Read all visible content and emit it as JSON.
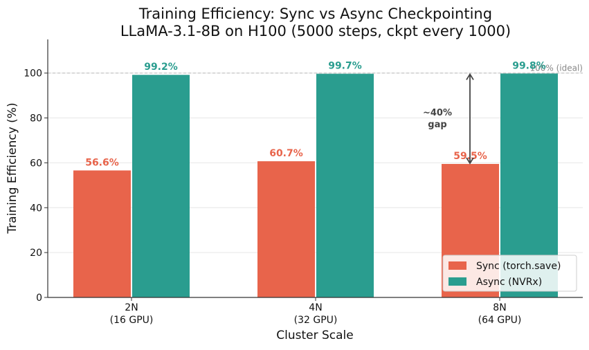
{
  "colors": {
    "sync": "#e8644b",
    "async": "#2a9d8f",
    "sync_label": "#e8644b",
    "async_label": "#2a9d8f"
  },
  "chart_data": {
    "type": "bar",
    "title": "Training Efficiency: Sync vs Async Checkpointing",
    "subtitle": "LLaMA-3.1-8B on H100 (5000 steps, ckpt every 1000)",
    "xlabel": "Cluster Scale",
    "ylabel": "Training Efficiency (%)",
    "ylim": [
      0,
      115
    ],
    "yticks": [
      0,
      20,
      40,
      60,
      80,
      100
    ],
    "categories": [
      {
        "line1": "2N",
        "line2": "(16 GPU)"
      },
      {
        "line1": "4N",
        "line2": "(32 GPU)"
      },
      {
        "line1": "8N",
        "line2": "(64 GPU)"
      }
    ],
    "series": [
      {
        "name": "Sync (torch.save)",
        "values": [
          56.6,
          60.7,
          59.5
        ],
        "labels": [
          "56.6%",
          "60.7%",
          "59.5%"
        ]
      },
      {
        "name": "Async (NVRx)",
        "values": [
          99.2,
          99.7,
          99.8
        ],
        "labels": [
          "99.2%",
          "99.7%",
          "99.8%"
        ]
      }
    ],
    "reference_line": {
      "value": 100,
      "label": "100% (ideal)"
    },
    "annotation": {
      "line1": "~40%",
      "line2": "gap",
      "category_index": 2,
      "from": 59.5,
      "to": 99.8
    },
    "grid": "y",
    "legend_position": "lower-right"
  }
}
